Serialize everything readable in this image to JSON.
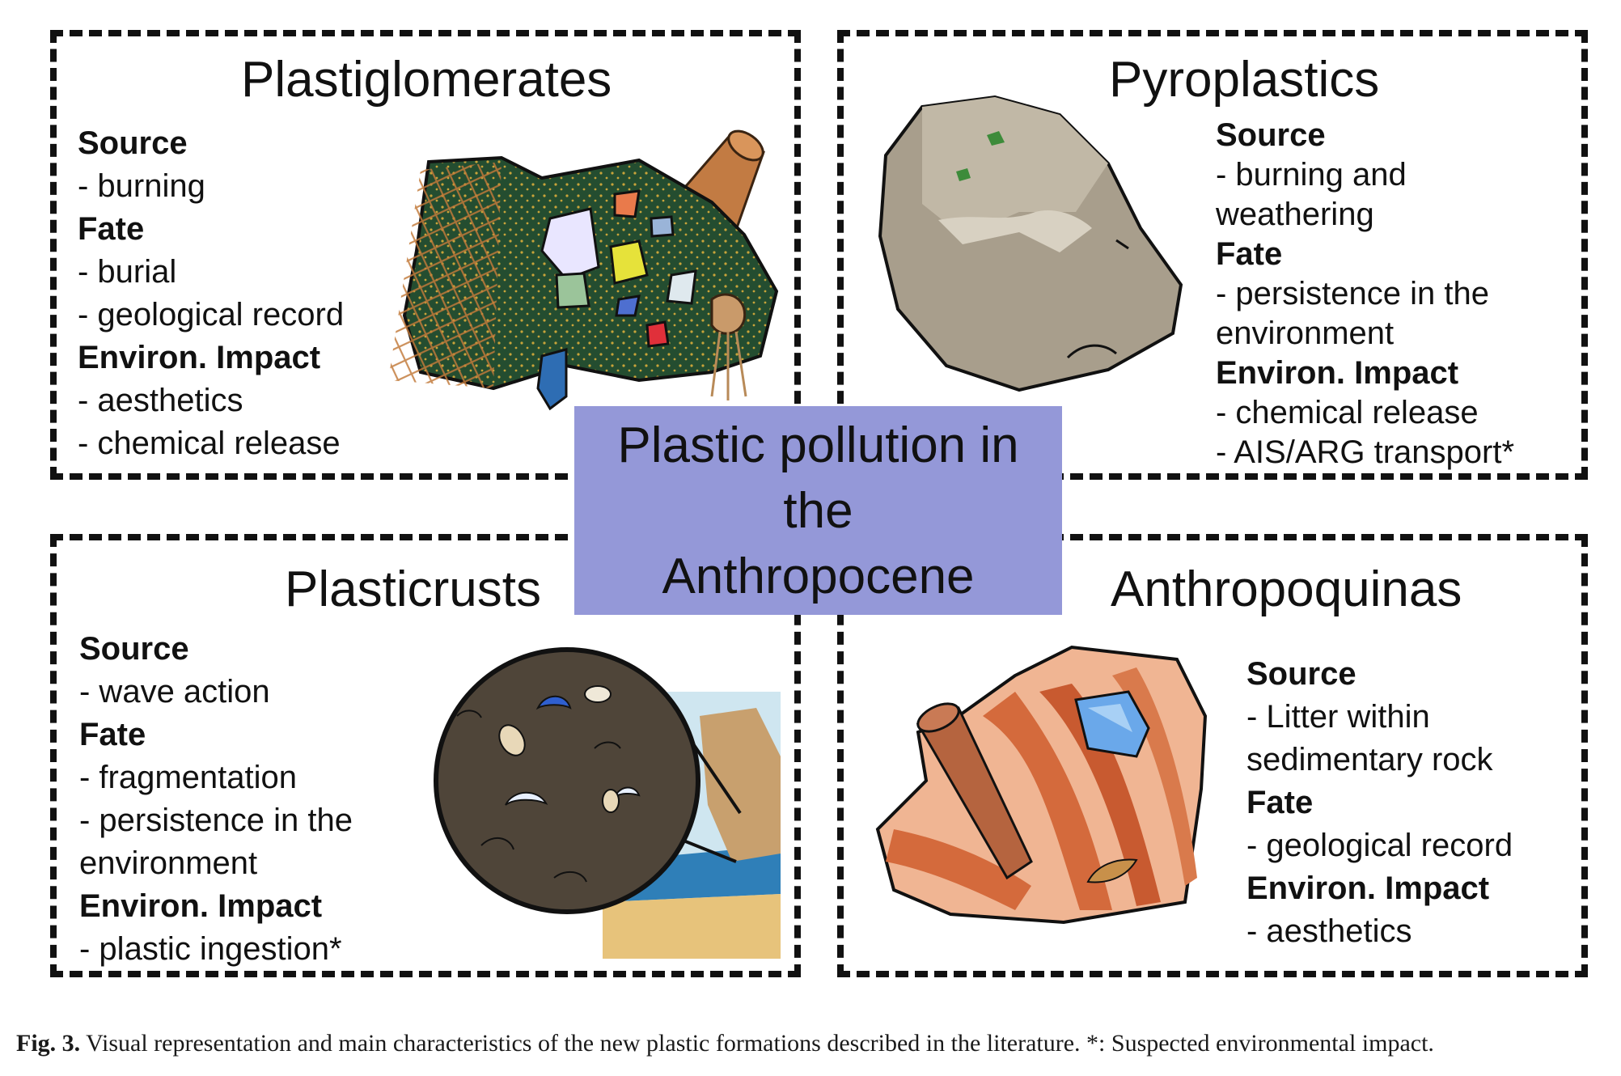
{
  "panels": {
    "plastiglomerates": {
      "title": "Plastiglomerates",
      "lines": [
        {
          "text": "Source",
          "heading": true
        },
        {
          "text": "- burning",
          "heading": false
        },
        {
          "text": "Fate",
          "heading": true
        },
        {
          "text": "- burial",
          "heading": false
        },
        {
          "text": "- geological record",
          "heading": false
        },
        {
          "text": "Environ. Impact",
          "heading": true
        },
        {
          "text": "- aesthetics",
          "heading": false
        },
        {
          "text": "- chemical release",
          "heading": false
        }
      ]
    },
    "pyroplastics": {
      "title": "Pyroplastics",
      "lines": [
        {
          "text": "Source",
          "heading": true
        },
        {
          "text": "- burning and",
          "heading": false
        },
        {
          "text": "weathering",
          "heading": false
        },
        {
          "text": "Fate",
          "heading": true
        },
        {
          "text": "- persistence in the",
          "heading": false
        },
        {
          "text": "environment",
          "heading": false
        },
        {
          "text": "Environ. Impact",
          "heading": true
        },
        {
          "text": "- chemical release",
          "heading": false
        },
        {
          "text": "- AIS/ARG transport*",
          "heading": false
        }
      ]
    },
    "plasticrusts": {
      "title": "Plasticrusts",
      "lines": [
        {
          "text": "Source",
          "heading": true
        },
        {
          "text": "- wave action",
          "heading": false
        },
        {
          "text": "Fate",
          "heading": true
        },
        {
          "text": "- fragmentation",
          "heading": false
        },
        {
          "text": "- persistence in the",
          "heading": false
        },
        {
          "text": "environment",
          "heading": false
        },
        {
          "text": "Environ. Impact",
          "heading": true
        },
        {
          "text": "- plastic ingestion*",
          "heading": false
        }
      ]
    },
    "anthropoquinas": {
      "title": "Anthropoquinas",
      "lines": [
        {
          "text": "Source",
          "heading": true
        },
        {
          "text": "- Litter within",
          "heading": false
        },
        {
          "text": "sedimentary rock",
          "heading": false
        },
        {
          "text": "Fate",
          "heading": true
        },
        {
          "text": "- geological record",
          "heading": false
        },
        {
          "text": "Environ. Impact",
          "heading": true
        },
        {
          "text": "- aesthetics",
          "heading": false
        }
      ]
    }
  },
  "center": {
    "line1": "Plastic pollution in",
    "line2": "the",
    "line3": "Anthropocene"
  },
  "caption": {
    "label": "Fig. 3.",
    "text": " Visual representation and main characteristics of the new plastic formations described in the literature. *: Suspected environmental impact."
  },
  "colors": {
    "center_box": "#9498d8",
    "border": "#111111"
  }
}
